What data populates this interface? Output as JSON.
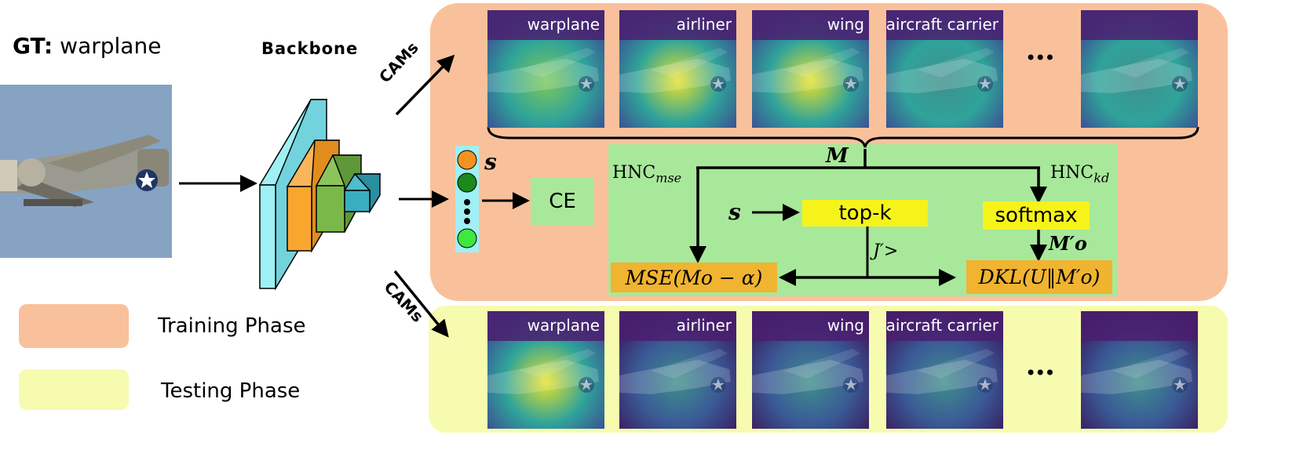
{
  "gt": {
    "prefix": "GT:",
    "label": "warplane"
  },
  "backbone_label": "Backbone",
  "cams_label": "CAMs",
  "ellipsis": "•••",
  "train_cams": [
    "warplane",
    "airliner",
    "wing",
    "aircraft carrier",
    "",
    ""
  ],
  "test_cams": [
    "warplane",
    "airliner",
    "wing",
    "aircraft carrier",
    "",
    ""
  ],
  "score_label": "s",
  "ce_label": "CE",
  "hnc": {
    "mse_label": "HNC",
    "mse_sub": "mse",
    "kd_label": "HNC",
    "kd_sub": "kd",
    "m_label": "M",
    "s_label": "s",
    "topk_label": "top-k",
    "softmax_label": "softmax",
    "mo_prime": "M′o",
    "j_label": "J′>",
    "mse_formula": "MSE(Mo − α)",
    "dkl_formula": "DKL(U‖M′o)"
  },
  "legend": [
    {
      "label": "Training Phase",
      "color": "#f9c19b"
    },
    {
      "label": "Testing Phase",
      "color": "#f7fbb0"
    }
  ],
  "colors": {
    "training": "#f9c19b",
    "testing": "#f7fbb0",
    "hnc_panel": "#a8e89b",
    "ce_box": "#a8e89b",
    "formula_box": "#f0b431",
    "yellow_box": "#f5f31a",
    "layer1": "#9ff0f5",
    "layer2": "#f9a62f",
    "layer3": "#7ab84a",
    "layer4": "#39aec0"
  }
}
